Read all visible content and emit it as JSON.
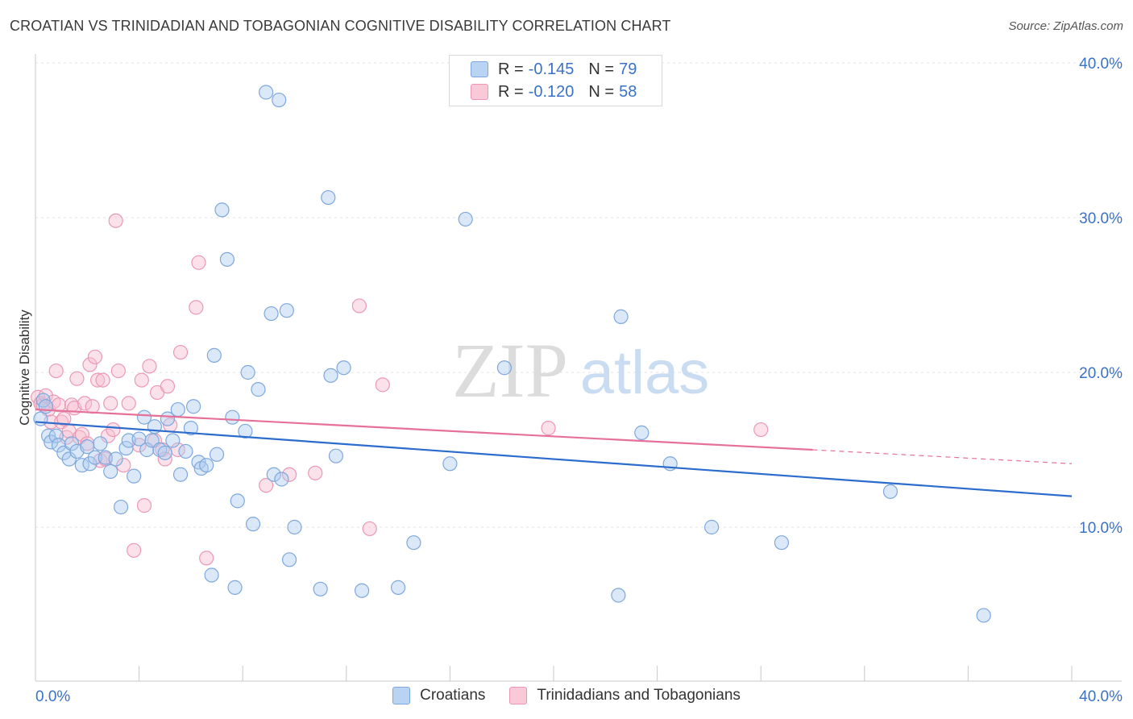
{
  "header": {
    "title": "CROATIAN VS TRINIDADIAN AND TOBAGONIAN COGNITIVE DISABILITY CORRELATION CHART",
    "source": "Source: ZipAtlas.com"
  },
  "watermark": {
    "zip": "ZIP",
    "atlas": "atlas"
  },
  "legend": {
    "rows": [
      {
        "r_label": "R =",
        "r_value": "-0.145",
        "n_label": "N =",
        "n_value": "79"
      },
      {
        "r_label": "R =",
        "r_value": "-0.120",
        "n_label": "N =",
        "n_value": "58"
      }
    ]
  },
  "bottom_legend": {
    "series1": "Croatians",
    "series2": "Trinidadians and Tobagonians"
  },
  "colors": {
    "blue_fill": "#aecbef",
    "blue_stroke": "#7ea8dd",
    "blue_line": "#2b6ccc",
    "pink_fill": "#f6bfd1",
    "pink_stroke": "#ec98b5",
    "pink_line": "#e5709a",
    "axis_text": "#3a72c8",
    "grid": "#e3e3e3"
  },
  "chart_data": {
    "type": "scatter",
    "title": "CROATIAN VS TRINIDADIAN AND TOBAGONIAN COGNITIVE DISABILITY CORRELATION CHART",
    "xlabel": "",
    "ylabel": "Cognitive Disability",
    "xlim": [
      0,
      40
    ],
    "ylim": [
      0,
      40.5
    ],
    "x_tick_labels": [
      "0.0%",
      "40.0%"
    ],
    "y_ticks": [
      10,
      20,
      30,
      40
    ],
    "y_tick_labels": [
      "10.0%",
      "20.0%",
      "30.0%",
      "40.0%"
    ],
    "grid": true,
    "legend_position": "top-center",
    "series": [
      {
        "name": "Croatians",
        "R": -0.145,
        "N": 79,
        "trend": {
          "x": [
            0,
            40
          ],
          "y": [
            16.8,
            12.0
          ]
        },
        "points": [
          [
            0.2,
            17.0
          ],
          [
            0.3,
            18.2
          ],
          [
            0.4,
            17.8
          ],
          [
            0.5,
            15.9
          ],
          [
            0.6,
            15.5
          ],
          [
            0.8,
            15.9
          ],
          [
            0.9,
            15.3
          ],
          [
            1.1,
            14.8
          ],
          [
            1.3,
            14.4
          ],
          [
            1.4,
            15.4
          ],
          [
            1.6,
            14.9
          ],
          [
            1.8,
            14.0
          ],
          [
            2.0,
            15.2
          ],
          [
            2.1,
            14.1
          ],
          [
            2.3,
            14.5
          ],
          [
            2.5,
            15.4
          ],
          [
            2.7,
            14.5
          ],
          [
            2.9,
            13.6
          ],
          [
            3.1,
            14.4
          ],
          [
            3.3,
            11.3
          ],
          [
            3.5,
            15.1
          ],
          [
            3.6,
            15.6
          ],
          [
            3.8,
            13.3
          ],
          [
            4.0,
            15.7
          ],
          [
            4.2,
            17.1
          ],
          [
            4.3,
            15.0
          ],
          [
            4.5,
            15.6
          ],
          [
            4.6,
            16.5
          ],
          [
            4.8,
            15.0
          ],
          [
            5.0,
            14.8
          ],
          [
            5.1,
            17.0
          ],
          [
            5.3,
            15.6
          ],
          [
            5.5,
            17.6
          ],
          [
            5.6,
            13.4
          ],
          [
            5.8,
            14.9
          ],
          [
            6.0,
            16.4
          ],
          [
            6.1,
            17.8
          ],
          [
            6.3,
            14.2
          ],
          [
            6.4,
            13.8
          ],
          [
            6.6,
            14.0
          ],
          [
            6.8,
            6.9
          ],
          [
            6.9,
            21.1
          ],
          [
            7.0,
            14.7
          ],
          [
            7.2,
            30.5
          ],
          [
            7.4,
            27.3
          ],
          [
            7.6,
            17.1
          ],
          [
            7.7,
            6.1
          ],
          [
            7.8,
            11.7
          ],
          [
            8.1,
            16.2
          ],
          [
            8.2,
            20.0
          ],
          [
            8.4,
            10.2
          ],
          [
            8.6,
            18.9
          ],
          [
            8.9,
            38.1
          ],
          [
            9.1,
            23.8
          ],
          [
            9.2,
            13.4
          ],
          [
            9.4,
            37.6
          ],
          [
            9.5,
            13.1
          ],
          [
            9.7,
            24.0
          ],
          [
            9.8,
            7.9
          ],
          [
            10.0,
            10.0
          ],
          [
            11.0,
            6.0
          ],
          [
            11.3,
            31.3
          ],
          [
            11.4,
            19.8
          ],
          [
            11.6,
            14.6
          ],
          [
            11.9,
            20.3
          ],
          [
            12.6,
            5.9
          ],
          [
            14.0,
            6.1
          ],
          [
            14.6,
            9.0
          ],
          [
            16.0,
            14.1
          ],
          [
            16.6,
            29.9
          ],
          [
            18.1,
            20.3
          ],
          [
            22.5,
            5.6
          ],
          [
            22.6,
            23.6
          ],
          [
            23.4,
            16.1
          ],
          [
            24.5,
            14.1
          ],
          [
            26.1,
            10.0
          ],
          [
            28.8,
            9.0
          ],
          [
            33.0,
            12.3
          ],
          [
            36.6,
            4.3
          ]
        ]
      },
      {
        "name": "Trinidadians and Tobagonians",
        "R": -0.12,
        "N": 58,
        "trend": {
          "x": [
            0,
            30
          ],
          "y": [
            17.6,
            15.0
          ]
        },
        "trend_dashed": {
          "x": [
            30,
            40
          ],
          "y": [
            15.0,
            14.1
          ]
        },
        "points": [
          [
            0.1,
            18.4
          ],
          [
            0.2,
            18.0
          ],
          [
            0.3,
            17.9
          ],
          [
            0.4,
            18.5
          ],
          [
            0.5,
            17.6
          ],
          [
            0.6,
            16.8
          ],
          [
            0.7,
            18.1
          ],
          [
            0.8,
            20.1
          ],
          [
            0.9,
            17.9
          ],
          [
            1.0,
            16.8
          ],
          [
            1.1,
            17.0
          ],
          [
            1.2,
            15.8
          ],
          [
            1.3,
            16.2
          ],
          [
            1.4,
            17.9
          ],
          [
            1.5,
            17.7
          ],
          [
            1.6,
            19.6
          ],
          [
            1.7,
            15.8
          ],
          [
            1.8,
            16.0
          ],
          [
            1.9,
            18.0
          ],
          [
            2.0,
            15.4
          ],
          [
            2.1,
            20.5
          ],
          [
            2.2,
            17.8
          ],
          [
            2.3,
            21.0
          ],
          [
            2.4,
            19.5
          ],
          [
            2.5,
            14.3
          ],
          [
            2.6,
            19.5
          ],
          [
            2.7,
            14.4
          ],
          [
            2.8,
            15.9
          ],
          [
            2.9,
            18.0
          ],
          [
            3.0,
            16.3
          ],
          [
            3.1,
            29.8
          ],
          [
            3.2,
            20.1
          ],
          [
            3.4,
            14.0
          ],
          [
            3.6,
            18.0
          ],
          [
            3.8,
            8.5
          ],
          [
            4.0,
            15.3
          ],
          [
            4.1,
            19.5
          ],
          [
            4.2,
            11.4
          ],
          [
            4.4,
            20.4
          ],
          [
            4.6,
            15.6
          ],
          [
            4.7,
            18.7
          ],
          [
            4.9,
            15.0
          ],
          [
            5.0,
            14.4
          ],
          [
            5.1,
            19.1
          ],
          [
            5.2,
            16.6
          ],
          [
            5.5,
            15.0
          ],
          [
            5.6,
            21.3
          ],
          [
            6.2,
            24.2
          ],
          [
            6.3,
            27.1
          ],
          [
            6.6,
            8.0
          ],
          [
            8.9,
            12.7
          ],
          [
            9.8,
            13.4
          ],
          [
            10.8,
            13.5
          ],
          [
            12.5,
            24.3
          ],
          [
            12.9,
            9.9
          ],
          [
            13.4,
            19.2
          ],
          [
            19.8,
            16.4
          ],
          [
            28.0,
            16.3
          ]
        ]
      }
    ]
  }
}
